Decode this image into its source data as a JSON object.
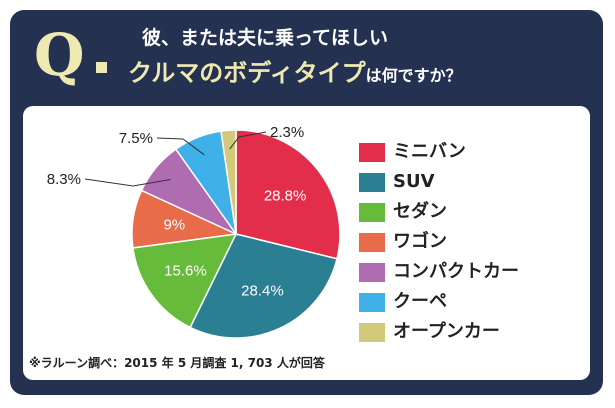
{
  "header": {
    "q_mark": "Q",
    "line1": "彼、または夫に乗ってほしい",
    "line2_emphasis": "クルマのボディタイプ",
    "line2_suffix": "は何ですか？"
  },
  "colors": {
    "card": "#243151",
    "accent": "#eee9b0"
  },
  "footnote": "※ラルーン調べ：2015 年 5 月調査 1, 703 人が回答",
  "chart_data": {
    "type": "pie",
    "title": "",
    "start_angle_deg": 0,
    "direction": "clockwise",
    "slices": [
      {
        "label": "ミニバン",
        "value": 28.8,
        "value_text": "28.8%",
        "color": "#e32e4b",
        "label_position": "inside"
      },
      {
        "label": "SUV",
        "value": 28.4,
        "value_text": "28.4%",
        "color": "#2a7f92",
        "label_position": "inside"
      },
      {
        "label": "セダン",
        "value": 15.6,
        "value_text": "15.6%",
        "color": "#66bb3b",
        "label_position": "inside"
      },
      {
        "label": "ワゴン",
        "value": 9,
        "value_text": "9%",
        "color": "#e86b4a",
        "label_position": "inside"
      },
      {
        "label": "コンパクトカー",
        "value": 8.3,
        "value_text": "8.3%",
        "color": "#b06cb1",
        "label_position": "outside"
      },
      {
        "label": "クーペ",
        "value": 7.5,
        "value_text": "7.5%",
        "color": "#40b0e8",
        "label_position": "outside"
      },
      {
        "label": "オープンカー",
        "value": 2.3,
        "value_text": "2.3%",
        "color": "#d2c97b",
        "label_position": "outside"
      }
    ],
    "legend_position": "right"
  }
}
